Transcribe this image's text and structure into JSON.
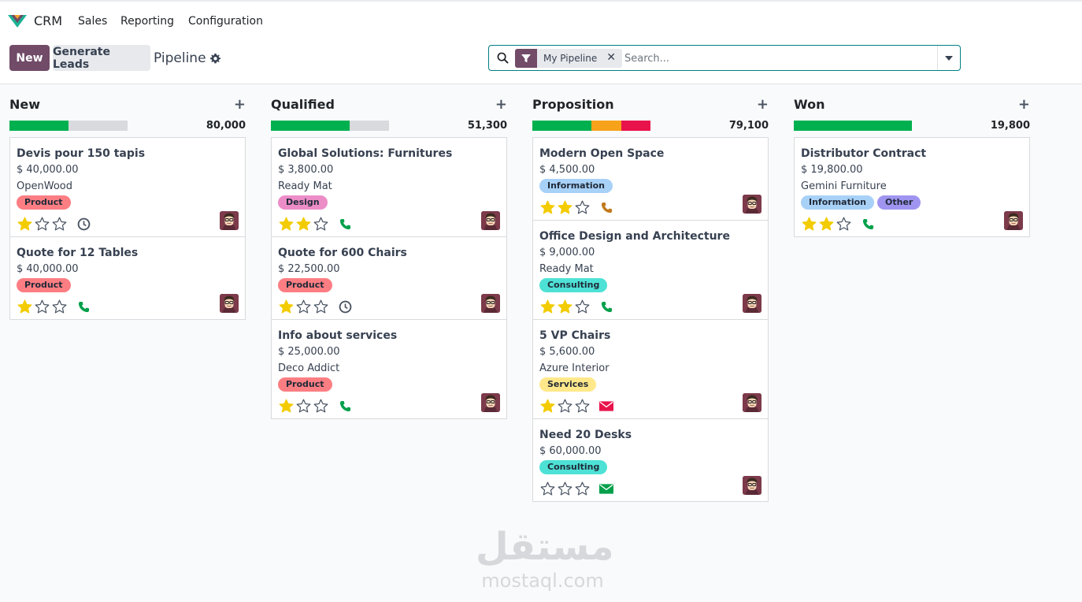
{
  "app": {
    "name": "CRM",
    "logo_icon": "odoo-crm-logo"
  },
  "menu": [
    {
      "label": "Sales"
    },
    {
      "label": "Reporting"
    },
    {
      "label": "Configuration"
    }
  ],
  "control": {
    "new_label": "New",
    "generate_label": "Generate Leads",
    "view_title": "Pipeline",
    "search": {
      "facet": "My Pipeline",
      "placeholder": "Search..."
    }
  },
  "colors": {
    "brand": "#714b67",
    "green": "#00b04f",
    "orange": "#f7a21b",
    "red": "#e8134a",
    "star": "#f3cc00"
  },
  "columns": [
    {
      "title": "New",
      "total": "80,000",
      "progress": [
        {
          "color": "#00b04f",
          "fraction": 0.5
        }
      ],
      "cards": [
        {
          "title": "Devis pour 150 tapis",
          "amount": "$ 40,000.00",
          "company": "OpenWood",
          "tags": [
            {
              "label": "Product",
              "color": "#fc7e83"
            }
          ],
          "stars": 1,
          "activity": "clock-icon"
        },
        {
          "title": "Quote for 12 Tables",
          "amount": "$ 40,000.00",
          "company": "",
          "tags": [
            {
              "label": "Product",
              "color": "#fc7e83"
            }
          ],
          "stars": 1,
          "activity": "phone-icon"
        }
      ]
    },
    {
      "title": "Qualified",
      "total": "51,300",
      "progress": [
        {
          "color": "#00b04f",
          "fraction": 0.667
        }
      ],
      "cards": [
        {
          "title": "Global Solutions: Furnitures",
          "amount": "$ 3,800.00",
          "company": "Ready Mat",
          "tags": [
            {
              "label": "Design",
              "color": "#ec8dc8"
            }
          ],
          "stars": 2,
          "activity": "phone-icon"
        },
        {
          "title": "Quote for 600 Chairs",
          "amount": "$ 22,500.00",
          "company": "",
          "tags": [
            {
              "label": "Product",
              "color": "#fc7e83"
            }
          ],
          "stars": 1,
          "activity": "clock-icon"
        },
        {
          "title": "Info about services",
          "amount": "$ 25,000.00",
          "company": "Deco Addict",
          "tags": [
            {
              "label": "Product",
              "color": "#fc7e83"
            }
          ],
          "stars": 1,
          "activity": "phone-icon"
        }
      ]
    },
    {
      "title": "Proposition",
      "total": "79,100",
      "progress": [
        {
          "color": "#00b04f",
          "fraction": 0.5
        },
        {
          "color": "#f7a21b",
          "fraction": 0.25
        },
        {
          "color": "#e8134a",
          "fraction": 0.25
        }
      ],
      "cards": [
        {
          "title": "Modern Open Space",
          "amount": "$ 4,500.00",
          "company": "",
          "tags": [
            {
              "label": "Information",
              "color": "#a8d1f7"
            }
          ],
          "stars": 2,
          "activity": "phone-orange-icon"
        },
        {
          "title": "Office Design and Architecture",
          "amount": "$ 9,000.00",
          "company": "Ready Mat",
          "tags": [
            {
              "label": "Consulting",
              "color": "#4ee2d6"
            }
          ],
          "stars": 2,
          "activity": "phone-icon"
        },
        {
          "title": "5 VP Chairs",
          "amount": "$ 5,600.00",
          "company": "Azure Interior",
          "tags": [
            {
              "label": "Services",
              "color": "#ffe88a"
            }
          ],
          "stars": 1,
          "activity": "envelope-red-icon"
        },
        {
          "title": "Need 20 Desks",
          "amount": "$ 60,000.00",
          "company": "",
          "tags": [
            {
              "label": "Consulting",
              "color": "#4ee2d6"
            }
          ],
          "stars": 0,
          "activity": "envelope-green-icon"
        }
      ]
    },
    {
      "title": "Won",
      "total": "19,800",
      "progress": [
        {
          "color": "#00b04f",
          "fraction": 1.0
        }
      ],
      "cards": [
        {
          "title": "Distributor Contract",
          "amount": "$ 19,800.00",
          "company": "Gemini Furniture",
          "tags": [
            {
              "label": "Information",
              "color": "#a8d1f7"
            },
            {
              "label": "Other",
              "color": "#9f95f0"
            }
          ],
          "stars": 2,
          "activity": "phone-icon"
        }
      ]
    }
  ],
  "watermark": {
    "arabic": "مستقل",
    "latin": "mostaql.com"
  }
}
